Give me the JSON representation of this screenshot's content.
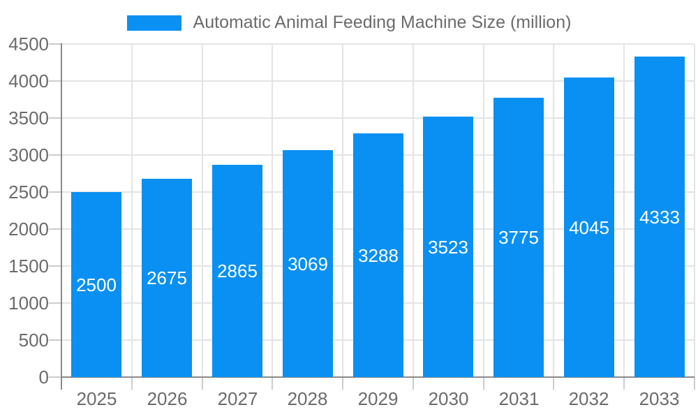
{
  "legend": {
    "label": "Automatic Animal Feeding Machine Size (million)"
  },
  "colors": {
    "bar": "#0990f2",
    "axis_line": "#8a8a8a",
    "grid_line": "#e4e4e4",
    "tick_line": "#cccccc",
    "axis_label": "#6b6b6b",
    "legend_text": "#6b6b6b",
    "bar_label": "#ffffff",
    "background": "#ffffff"
  },
  "chart_data": {
    "type": "bar",
    "title": "Automatic Animal Feeding Machine Size (million)",
    "categories": [
      "2025",
      "2026",
      "2027",
      "2028",
      "2029",
      "2030",
      "2031",
      "2032",
      "2033"
    ],
    "series": [
      {
        "name": "Automatic Animal Feeding Machine Size (million)",
        "values": [
          2500,
          2675,
          2865,
          3069,
          3288,
          3523,
          3775,
          4045,
          4333
        ]
      }
    ],
    "xlabel": "",
    "ylabel": "",
    "ylim": [
      0,
      4500
    ],
    "yticks": [
      0,
      500,
      1000,
      1500,
      2000,
      2500,
      3000,
      3500,
      4000,
      4500
    ],
    "grid": true,
    "legend_position": "top-center",
    "value_label_position": "inside-center"
  }
}
